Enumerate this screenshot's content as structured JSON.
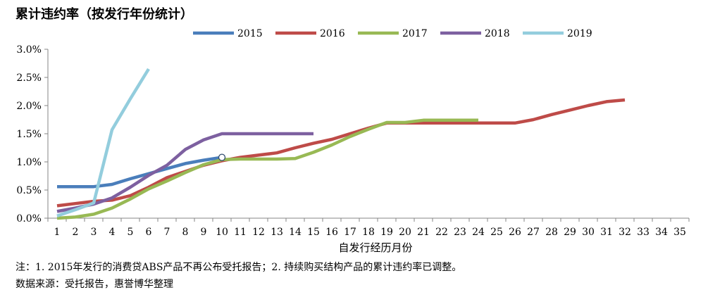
{
  "title": "累计违约率（按发行年份统计）",
  "notes": {
    "note": "注：1. 2015年发行的消费贷ABS产品不再公布受托报告；2. 持续购买结构产品的累计违约率已调整。",
    "source": "数据来源：受托报告，惠誉博华整理"
  },
  "chart_data": {
    "type": "line",
    "title": "累计违约率（按发行年份统计）",
    "xlabel": "自发行经历月份",
    "ylabel": "",
    "xlim": [
      1,
      35
    ],
    "ylim": [
      0,
      3.0
    ],
    "y_unit": "%",
    "y_ticks": [
      "0.0%",
      "0.5%",
      "1.0%",
      "1.5%",
      "2.0%",
      "2.5%",
      "3.0%"
    ],
    "x_ticks": [
      1,
      2,
      3,
      4,
      5,
      6,
      7,
      8,
      9,
      10,
      11,
      12,
      13,
      14,
      15,
      16,
      17,
      18,
      19,
      20,
      21,
      22,
      23,
      24,
      25,
      26,
      27,
      28,
      29,
      30,
      31,
      32,
      33,
      34,
      35
    ],
    "grid": false,
    "legend": "top",
    "series": [
      {
        "name": "2015",
        "color": "#4a7ebb",
        "x": [
          1,
          2,
          3,
          4,
          5,
          6,
          7,
          8,
          9,
          10
        ],
        "y": [
          0.56,
          0.56,
          0.56,
          0.6,
          0.7,
          0.79,
          0.88,
          0.97,
          1.03,
          1.08
        ]
      },
      {
        "name": "2016",
        "color": "#be4b48",
        "x": [
          1,
          2,
          3,
          4,
          5,
          6,
          7,
          8,
          9,
          10,
          11,
          12,
          13,
          14,
          15,
          16,
          17,
          18,
          19,
          20,
          21,
          22,
          23,
          24,
          25,
          26,
          27,
          28,
          29,
          30,
          31,
          32
        ],
        "y": [
          0.22,
          0.26,
          0.3,
          0.32,
          0.4,
          0.55,
          0.72,
          0.83,
          0.94,
          1.02,
          1.08,
          1.12,
          1.16,
          1.25,
          1.33,
          1.4,
          1.5,
          1.6,
          1.69,
          1.69,
          1.69,
          1.69,
          1.69,
          1.69,
          1.69,
          1.69,
          1.75,
          1.84,
          1.92,
          2.0,
          2.07,
          2.1
        ]
      },
      {
        "name": "2017",
        "color": "#98b954",
        "x": [
          1,
          2,
          3,
          4,
          5,
          6,
          7,
          8,
          9,
          10,
          11,
          12,
          13,
          14,
          15,
          16,
          17,
          18,
          19,
          20,
          21,
          22,
          23,
          24
        ],
        "y": [
          0.0,
          0.02,
          0.07,
          0.18,
          0.34,
          0.52,
          0.66,
          0.81,
          0.95,
          1.04,
          1.05,
          1.05,
          1.05,
          1.06,
          1.17,
          1.3,
          1.45,
          1.58,
          1.7,
          1.7,
          1.74,
          1.74,
          1.74,
          1.74
        ]
      },
      {
        "name": "2018",
        "color": "#7d60a0",
        "x": [
          1,
          2,
          3,
          4,
          5,
          6,
          7,
          8,
          9,
          10,
          11,
          12,
          13,
          14,
          15
        ],
        "y": [
          0.12,
          0.18,
          0.25,
          0.36,
          0.55,
          0.76,
          0.94,
          1.22,
          1.39,
          1.5,
          1.5,
          1.5,
          1.5,
          1.5,
          1.5
        ]
      },
      {
        "name": "2019",
        "color": "#93cddd",
        "x": [
          1,
          2,
          3,
          4,
          5,
          6
        ],
        "y": [
          0.04,
          0.15,
          0.27,
          1.57,
          2.12,
          2.65
        ]
      }
    ]
  }
}
